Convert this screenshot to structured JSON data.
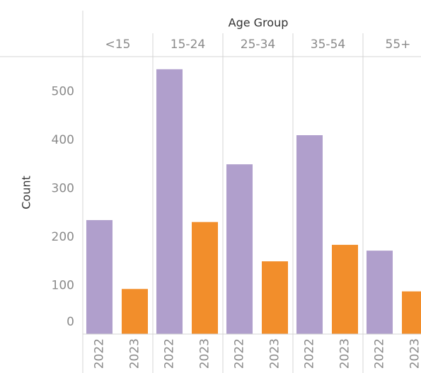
{
  "chart_data": {
    "type": "bar",
    "x_label": "Age Group",
    "y_label": "Count",
    "categories": [
      "<15",
      "15-24",
      "25-34",
      "35-54",
      "55+"
    ],
    "series": [
      {
        "name": "2022",
        "color": "#b09fcc",
        "values": [
          235,
          546,
          350,
          410,
          172
        ]
      },
      {
        "name": "2023",
        "color": "#f28e2b",
        "values": [
          93,
          231,
          150,
          184,
          88
        ]
      }
    ],
    "ylim": [
      0,
      572
    ],
    "yticks": [
      0,
      100,
      200,
      300,
      400,
      500
    ],
    "grid": false
  }
}
